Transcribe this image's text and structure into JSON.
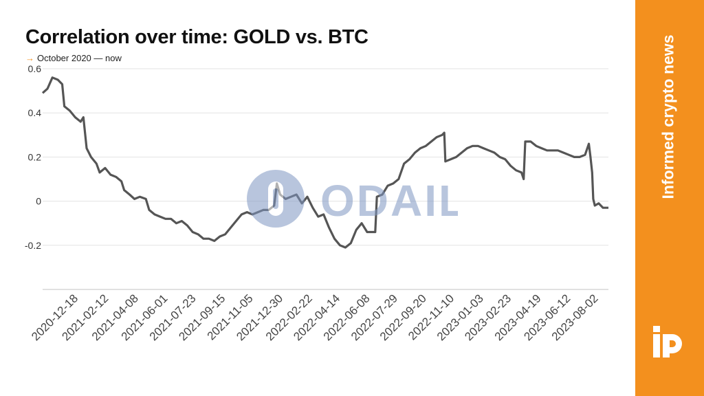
{
  "header": {
    "title": "Correlation over time: GOLD vs. BTC",
    "subtitle_arrow": "→",
    "subtitle": "October 2020 — now"
  },
  "side_panel": {
    "text": "Informed crypto news",
    "logo_icon": "ip-logo-icon",
    "color": "#f3901e"
  },
  "watermark": {
    "text": "ODAILY",
    "icon": "odaily-logo-icon",
    "color": "#7f97c2"
  },
  "chart_data": {
    "type": "line",
    "title": "Correlation over time: GOLD vs. BTC",
    "xlabel": "",
    "ylabel": "",
    "ylim": [
      -0.4,
      0.6
    ],
    "grid": true,
    "legend": "none",
    "line_color": "#555555",
    "y_ticks": [
      {
        "value": 0.6,
        "label": "0.6"
      },
      {
        "value": 0.4,
        "label": "0.4"
      },
      {
        "value": 0.2,
        "label": "0.2"
      },
      {
        "value": 0,
        "label": "0"
      },
      {
        "value": -0.2,
        "label": "-0.2"
      }
    ],
    "x_ticks": [
      "2020-12-18",
      "2021-02-12",
      "2021-04-08",
      "2021-06-01",
      "2021-07-23",
      "2021-09-15",
      "2021-11-05",
      "2021-12-30",
      "2022-02-22",
      "2022-04-14",
      "2022-06-08",
      "2022-07-29",
      "2022-09-20",
      "2022-11-10",
      "2023-01-03",
      "2023-02-23",
      "2023-04-19",
      "2023-06-12",
      "2023-08-02"
    ],
    "x_range": [
      "2020-10-23",
      "2023-08-30"
    ],
    "series": [
      {
        "points": [
          [
            "2020-10-23",
            0.49
          ],
          [
            "2020-11-01",
            0.51
          ],
          [
            "2020-11-10",
            0.56
          ],
          [
            "2020-11-20",
            0.55
          ],
          [
            "2020-11-28",
            0.53
          ],
          [
            "2020-12-02",
            0.43
          ],
          [
            "2020-12-12",
            0.41
          ],
          [
            "2020-12-22",
            0.38
          ],
          [
            "2021-01-01",
            0.36
          ],
          [
            "2021-01-06",
            0.38
          ],
          [
            "2021-01-12",
            0.24
          ],
          [
            "2021-01-20",
            0.2
          ],
          [
            "2021-01-30",
            0.17
          ],
          [
            "2021-02-05",
            0.13
          ],
          [
            "2021-02-15",
            0.15
          ],
          [
            "2021-02-25",
            0.12
          ],
          [
            "2021-03-07",
            0.11
          ],
          [
            "2021-03-17",
            0.09
          ],
          [
            "2021-03-22",
            0.05
          ],
          [
            "2021-04-01",
            0.03
          ],
          [
            "2021-04-10",
            0.01
          ],
          [
            "2021-04-20",
            0.02
          ],
          [
            "2021-05-01",
            0.01
          ],
          [
            "2021-05-07",
            -0.04
          ],
          [
            "2021-05-17",
            -0.06
          ],
          [
            "2021-05-27",
            -0.07
          ],
          [
            "2021-06-06",
            -0.08
          ],
          [
            "2021-06-16",
            -0.08
          ],
          [
            "2021-06-26",
            -0.1
          ],
          [
            "2021-07-06",
            -0.09
          ],
          [
            "2021-07-16",
            -0.11
          ],
          [
            "2021-07-26",
            -0.14
          ],
          [
            "2021-08-05",
            -0.15
          ],
          [
            "2021-08-15",
            -0.17
          ],
          [
            "2021-08-25",
            -0.17
          ],
          [
            "2021-09-04",
            -0.18
          ],
          [
            "2021-09-14",
            -0.16
          ],
          [
            "2021-09-24",
            -0.15
          ],
          [
            "2021-10-04",
            -0.12
          ],
          [
            "2021-10-14",
            -0.09
          ],
          [
            "2021-10-24",
            -0.06
          ],
          [
            "2021-11-03",
            -0.05
          ],
          [
            "2021-11-13",
            -0.06
          ],
          [
            "2021-11-23",
            -0.05
          ],
          [
            "2021-12-03",
            -0.04
          ],
          [
            "2021-12-13",
            -0.04
          ],
          [
            "2021-12-23",
            -0.02
          ],
          [
            "2021-12-28",
            0.08
          ],
          [
            "2022-01-03",
            0.03
          ],
          [
            "2022-01-13",
            0.01
          ],
          [
            "2022-01-23",
            0.02
          ],
          [
            "2022-02-02",
            0.03
          ],
          [
            "2022-02-12",
            -0.01
          ],
          [
            "2022-02-22",
            0.02
          ],
          [
            "2022-03-04",
            -0.03
          ],
          [
            "2022-03-14",
            -0.07
          ],
          [
            "2022-03-24",
            -0.06
          ],
          [
            "2022-04-03",
            -0.12
          ],
          [
            "2022-04-13",
            -0.17
          ],
          [
            "2022-04-23",
            -0.2
          ],
          [
            "2022-05-03",
            -0.21
          ],
          [
            "2022-05-13",
            -0.19
          ],
          [
            "2022-05-23",
            -0.13
          ],
          [
            "2022-06-02",
            -0.1
          ],
          [
            "2022-06-12",
            -0.14
          ],
          [
            "2022-06-22",
            -0.14
          ],
          [
            "2022-06-27",
            -0.14
          ],
          [
            "2022-06-30",
            0.02
          ],
          [
            "2022-07-10",
            0.03
          ],
          [
            "2022-07-20",
            0.07
          ],
          [
            "2022-07-30",
            0.08
          ],
          [
            "2022-08-09",
            0.1
          ],
          [
            "2022-08-19",
            0.17
          ],
          [
            "2022-08-29",
            0.19
          ],
          [
            "2022-09-08",
            0.22
          ],
          [
            "2022-09-18",
            0.24
          ],
          [
            "2022-09-28",
            0.25
          ],
          [
            "2022-10-08",
            0.27
          ],
          [
            "2022-10-18",
            0.29
          ],
          [
            "2022-10-28",
            0.3
          ],
          [
            "2022-11-01",
            0.31
          ],
          [
            "2022-11-03",
            0.18
          ],
          [
            "2022-11-13",
            0.19
          ],
          [
            "2022-11-23",
            0.2
          ],
          [
            "2022-12-03",
            0.22
          ],
          [
            "2022-12-13",
            0.24
          ],
          [
            "2022-12-23",
            0.25
          ],
          [
            "2023-01-02",
            0.25
          ],
          [
            "2023-01-12",
            0.24
          ],
          [
            "2023-01-22",
            0.23
          ],
          [
            "2023-02-01",
            0.22
          ],
          [
            "2023-02-11",
            0.2
          ],
          [
            "2023-02-21",
            0.19
          ],
          [
            "2023-03-03",
            0.16
          ],
          [
            "2023-03-13",
            0.14
          ],
          [
            "2023-03-23",
            0.13
          ],
          [
            "2023-03-27",
            0.1
          ],
          [
            "2023-03-30",
            0.27
          ],
          [
            "2023-04-09",
            0.27
          ],
          [
            "2023-04-19",
            0.25
          ],
          [
            "2023-04-29",
            0.24
          ],
          [
            "2023-05-09",
            0.23
          ],
          [
            "2023-05-19",
            0.23
          ],
          [
            "2023-05-29",
            0.23
          ],
          [
            "2023-06-08",
            0.22
          ],
          [
            "2023-06-18",
            0.21
          ],
          [
            "2023-06-28",
            0.2
          ],
          [
            "2023-07-08",
            0.2
          ],
          [
            "2023-07-18",
            0.21
          ],
          [
            "2023-07-25",
            0.26
          ],
          [
            "2023-07-28",
            0.2
          ],
          [
            "2023-07-31",
            0.13
          ],
          [
            "2023-08-02",
            0.01
          ],
          [
            "2023-08-05",
            -0.02
          ],
          [
            "2023-08-12",
            -0.01
          ],
          [
            "2023-08-20",
            -0.03
          ],
          [
            "2023-08-30",
            -0.03
          ]
        ]
      }
    ]
  }
}
